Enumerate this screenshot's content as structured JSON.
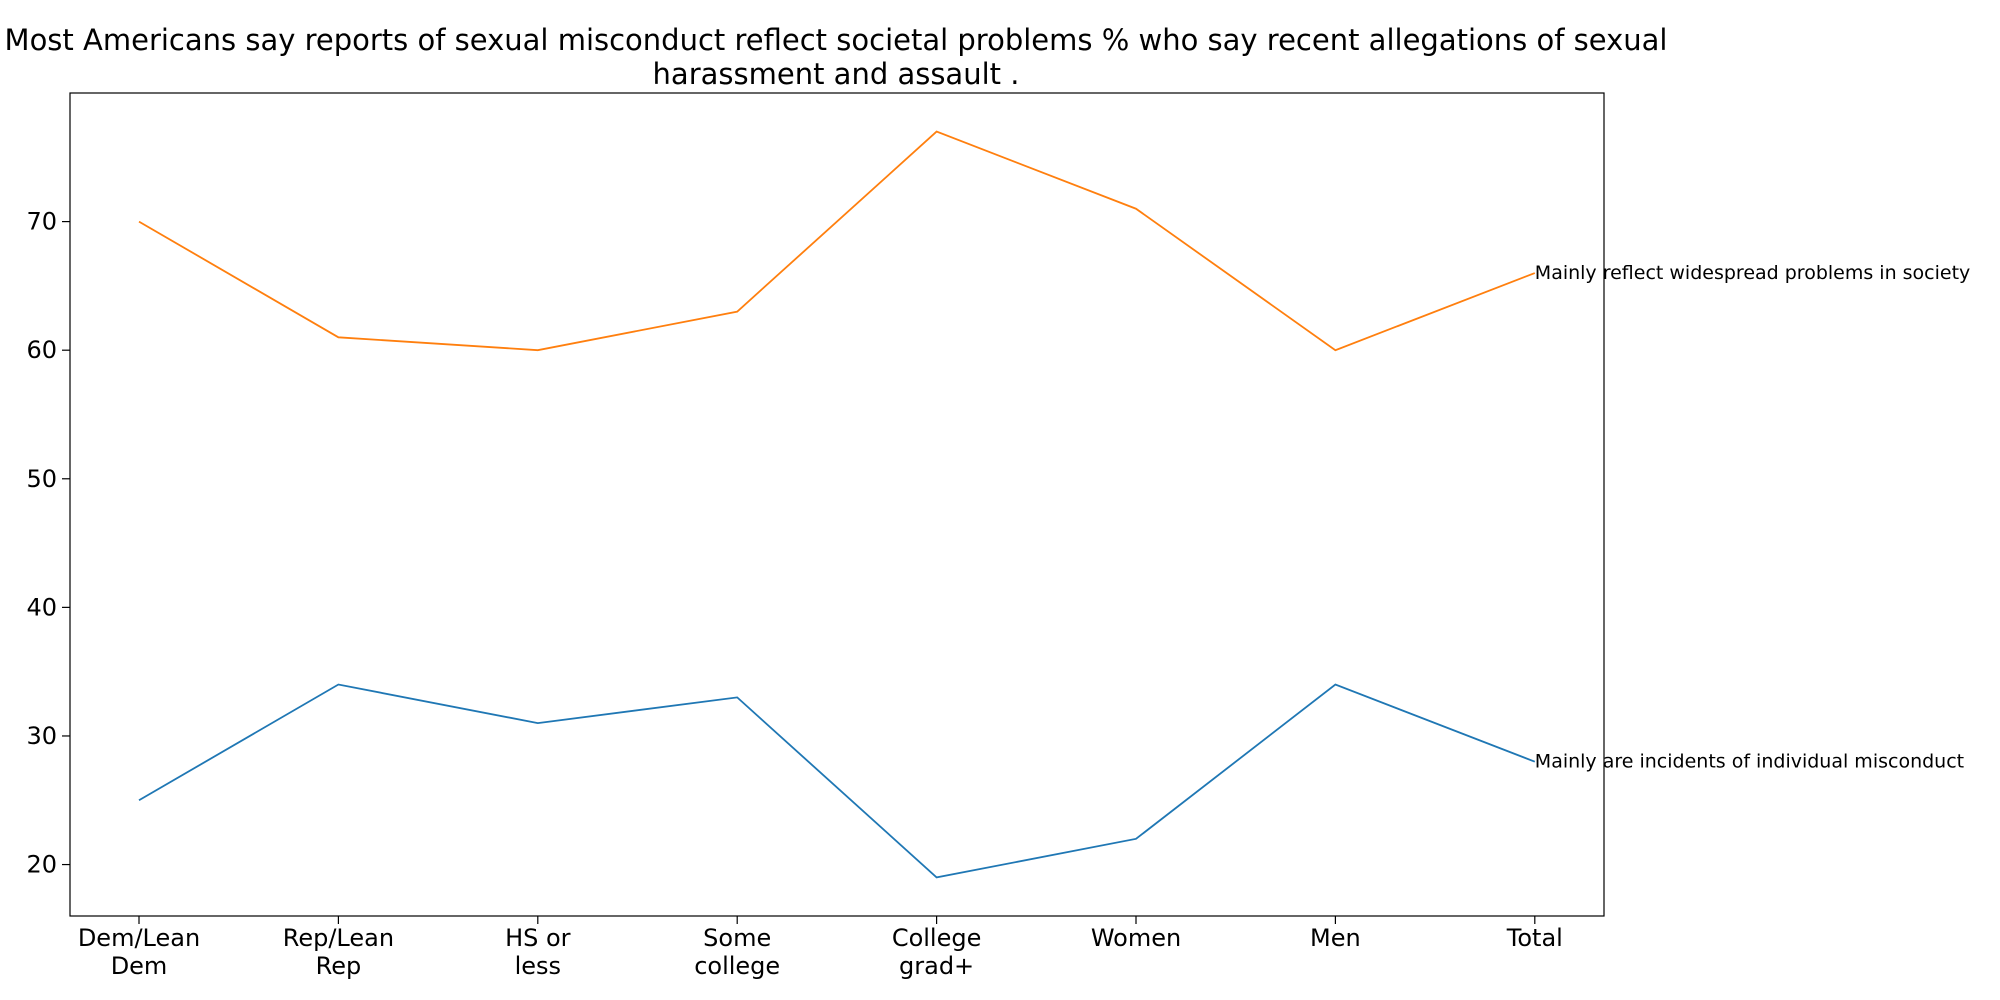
{
  "chart_data": {
    "type": "line",
    "title": "Most Americans say reports of sexual misconduct reflect societal problems % who say recent allegations of sexual harassment and assault .",
    "title_lines": [
      "Most Americans say reports of sexual misconduct reflect societal problems % who say recent allegations of sexual",
      "harassment and assault ."
    ],
    "categories": [
      [
        "Dem/Lean",
        "Dem"
      ],
      [
        "Rep/Lean",
        "Rep"
      ],
      [
        "HS or",
        "less"
      ],
      [
        "Some",
        "college"
      ],
      [
        "College",
        "grad+"
      ],
      [
        "Women"
      ],
      [
        "Men"
      ],
      [
        "Total"
      ]
    ],
    "series": [
      {
        "name": "Mainly are incidents of individual misconduct",
        "color": "#1f77b4",
        "values": [
          25,
          34,
          31,
          33,
          19,
          22,
          34,
          28
        ]
      },
      {
        "name": "Mainly reflect widespread problems in society",
        "color": "#ff7f0e",
        "values": [
          70,
          61,
          60,
          63,
          77,
          71,
          60,
          66
        ]
      }
    ],
    "y_ticks": [
      20,
      30,
      40,
      50,
      60,
      70
    ],
    "ylim": [
      16,
      80
    ],
    "legend": "end-of-line labels",
    "grid": false
  }
}
